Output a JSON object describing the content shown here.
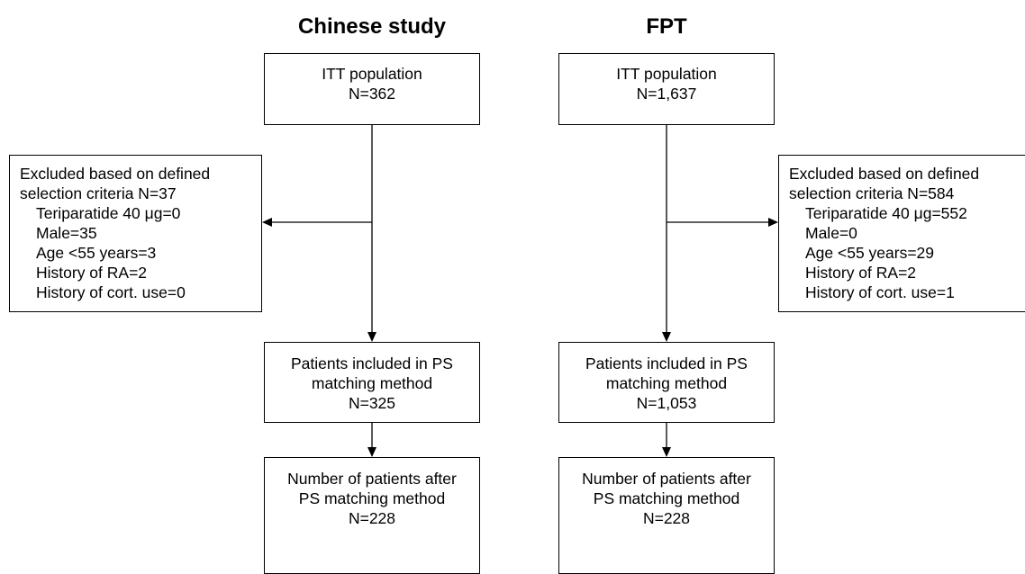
{
  "columns": [
    {
      "title": "Chinese study",
      "itt": {
        "label": "ITT population",
        "n": "N=362"
      },
      "excluded": {
        "lines": [
          "Excluded based on defined",
          "selection criteria N=37",
          "Teriparatide 40 μg=0",
          "Male=35",
          "Age <55 years=3",
          "History of RA=2",
          "History of cort. use=0"
        ]
      },
      "included": {
        "lines": [
          "Patients included in PS",
          "matching method",
          "N=325"
        ]
      },
      "matched": {
        "lines": [
          "Number of patients after",
          "PS matching method",
          "N=228"
        ]
      }
    },
    {
      "title": "FPT",
      "itt": {
        "label": "ITT population",
        "n": "N=1,637"
      },
      "excluded": {
        "lines": [
          "Excluded based on defined",
          "selection criteria N=584",
          "Teriparatide 40 μg=552",
          "Male=0",
          "Age <55 years=29",
          "History of RA=2",
          "History of cort. use=1"
        ]
      },
      "included": {
        "lines": [
          "Patients included in PS",
          "matching method",
          "N=1,053"
        ]
      },
      "matched": {
        "lines": [
          "Number of patients after",
          "PS matching method",
          "N=228"
        ]
      }
    }
  ]
}
